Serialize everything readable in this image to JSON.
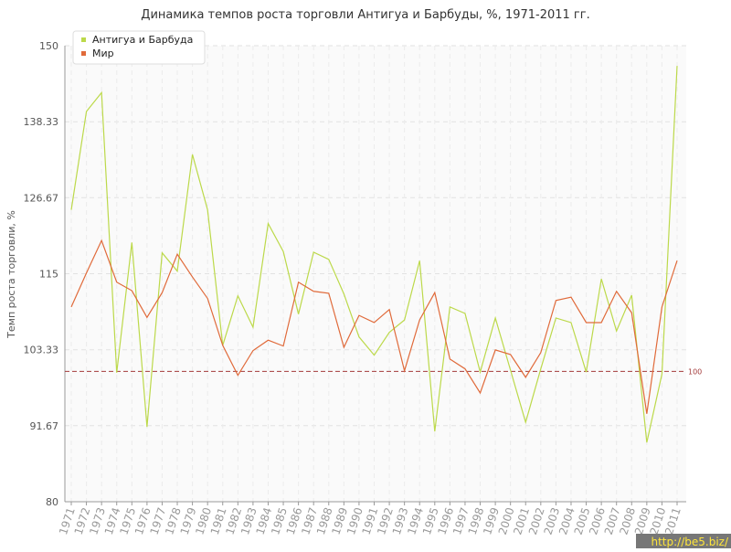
{
  "chart_data": {
    "type": "line",
    "title": "Динамика темпов роста торговли Антигуа и Барбуды, %, 1971-2011 гг.",
    "y_label": "Темп роста торговли, %",
    "categories": [
      "1971",
      "1972",
      "1973",
      "1974",
      "1975",
      "1976",
      "1977",
      "1978",
      "1979",
      "1980",
      "1981",
      "1982",
      "1983",
      "1984",
      "1985",
      "1986",
      "1987",
      "1988",
      "1989",
      "1990",
      "1991",
      "1992",
      "1993",
      "1994",
      "1995",
      "1996",
      "1997",
      "1998",
      "1999",
      "2000",
      "2001",
      "2002",
      "2003",
      "2004",
      "2005",
      "2006",
      "2007",
      "2008",
      "2009",
      "2010",
      "2011"
    ],
    "series": [
      {
        "name": "Антигуа и Барбуда",
        "color": "#bcd94a",
        "values": [
          124.8,
          139.9,
          142.8,
          99.8,
          119.8,
          91.5,
          118.2,
          115.4,
          133.3,
          124.8,
          104,
          111.6,
          106.8,
          122.7,
          118.4,
          108.8,
          118.3,
          117.2,
          111.9,
          105.3,
          102.5,
          106,
          107.9,
          117,
          90.8,
          109.9,
          108.9,
          99.9,
          108.2,
          100.2,
          92.2,
          100.4,
          108.2,
          107.5,
          99.9,
          114.2,
          106.2,
          111.7,
          89.1,
          99.6,
          146.9
        ]
      },
      {
        "name": "Мир",
        "color": "#e06a3a",
        "values": [
          109.9,
          115.1,
          120.1,
          113.7,
          112.4,
          108.3,
          112.1,
          118,
          114.5,
          111.2,
          104,
          99.4,
          103.2,
          104.8,
          103.9,
          113.7,
          112.3,
          112,
          103.7,
          108.6,
          107.5,
          109.5,
          100.1,
          107.9,
          112.1,
          101.9,
          100.4,
          96.7,
          103.3,
          102.6,
          99.1,
          102.9,
          110.9,
          111.4,
          107.5,
          107.5,
          112.3,
          109,
          93.5,
          109.9,
          117
        ]
      }
    ],
    "ylim": [
      80,
      150
    ],
    "yticks": [
      80,
      91.67,
      103.33,
      115,
      126.67,
      138.33,
      150
    ],
    "reference_line": 100,
    "reference_color": "#a33a3a",
    "grid": true,
    "legend": "top-left",
    "watermark": "http://be5.biz/"
  }
}
